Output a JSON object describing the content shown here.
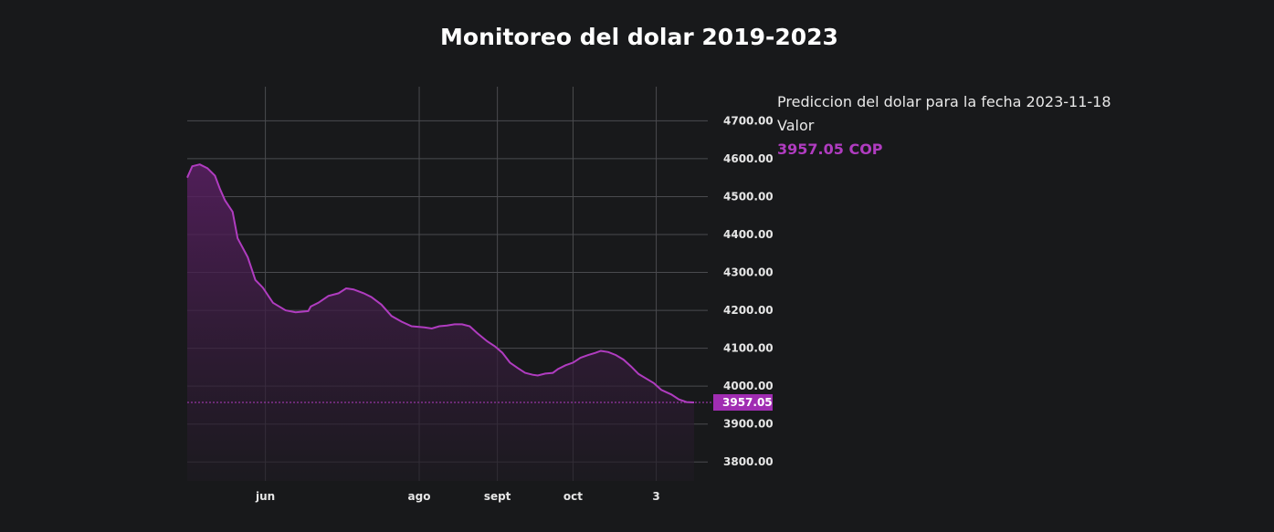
{
  "title": "Monitoreo del dolar 2019-2023",
  "info": {
    "prediction_text": "Prediccion del dolar para la fecha 2023-11-18",
    "value_label": "Valor",
    "value_text": "3957.05 COP"
  },
  "colors": {
    "accent": "#b03cc0",
    "background": "#18191b",
    "grid": "#4a4b4f"
  },
  "chart_data": {
    "type": "area",
    "title": "Monitoreo del dolar 2019-2023",
    "xlabel": "",
    "ylabel": "",
    "ylim": [
      3750,
      4790
    ],
    "y_ticks": [
      "3800.00",
      "3900.00",
      "4000.00",
      "4100.00",
      "4200.00",
      "4300.00",
      "4400.00",
      "4500.00",
      "4600.00",
      "4700.00"
    ],
    "x_ticks": [
      {
        "label": "jun",
        "date": "2023-06-01"
      },
      {
        "label": "ago",
        "date": "2023-08-01"
      },
      {
        "label": "sept",
        "date": "2023-09-01"
      },
      {
        "label": "oct",
        "date": "2023-10-01"
      },
      {
        "label": "3",
        "date": "2023-11-03"
      }
    ],
    "x_range": [
      "2023-05-01",
      "2023-11-18"
    ],
    "last_value_label": "3957.05",
    "grid": true,
    "series": [
      {
        "points": [
          [
            "2023-05-01",
            4550
          ],
          [
            "2023-05-03",
            4580
          ],
          [
            "2023-05-06",
            4585
          ],
          [
            "2023-05-09",
            4575
          ],
          [
            "2023-05-12",
            4555
          ],
          [
            "2023-05-14",
            4520
          ],
          [
            "2023-05-16",
            4490
          ],
          [
            "2023-05-19",
            4460
          ],
          [
            "2023-05-21",
            4390
          ],
          [
            "2023-05-25",
            4340
          ],
          [
            "2023-05-28",
            4280
          ],
          [
            "2023-05-31",
            4260
          ],
          [
            "2023-06-04",
            4220
          ],
          [
            "2023-06-09",
            4200
          ],
          [
            "2023-06-13",
            4195
          ],
          [
            "2023-06-18",
            4198
          ],
          [
            "2023-06-19",
            4210
          ],
          [
            "2023-06-22",
            4220
          ],
          [
            "2023-06-26",
            4238
          ],
          [
            "2023-06-30",
            4245
          ],
          [
            "2023-07-03",
            4258
          ],
          [
            "2023-07-06",
            4255
          ],
          [
            "2023-07-10",
            4245
          ],
          [
            "2023-07-13",
            4235
          ],
          [
            "2023-07-17",
            4215
          ],
          [
            "2023-07-21",
            4185
          ],
          [
            "2023-07-25",
            4170
          ],
          [
            "2023-07-29",
            4158
          ],
          [
            "2023-08-03",
            4155
          ],
          [
            "2023-08-06",
            4152
          ],
          [
            "2023-08-09",
            4158
          ],
          [
            "2023-08-12",
            4160
          ],
          [
            "2023-08-15",
            4163
          ],
          [
            "2023-08-18",
            4163
          ],
          [
            "2023-08-21",
            4158
          ],
          [
            "2023-08-24",
            4140
          ],
          [
            "2023-08-28",
            4118
          ],
          [
            "2023-08-31",
            4105
          ],
          [
            "2023-09-03",
            4088
          ],
          [
            "2023-09-06",
            4062
          ],
          [
            "2023-09-09",
            4048
          ],
          [
            "2023-09-12",
            4035
          ],
          [
            "2023-09-15",
            4030
          ],
          [
            "2023-09-17",
            4028
          ],
          [
            "2023-09-20",
            4033
          ],
          [
            "2023-09-23",
            4035
          ],
          [
            "2023-09-25",
            4045
          ],
          [
            "2023-09-28",
            4055
          ],
          [
            "2023-10-01",
            4062
          ],
          [
            "2023-10-04",
            4075
          ],
          [
            "2023-10-07",
            4082
          ],
          [
            "2023-10-10",
            4088
          ],
          [
            "2023-10-12",
            4093
          ],
          [
            "2023-10-15",
            4090
          ],
          [
            "2023-10-18",
            4082
          ],
          [
            "2023-10-21",
            4070
          ],
          [
            "2023-10-24",
            4052
          ],
          [
            "2023-10-27",
            4032
          ],
          [
            "2023-10-30",
            4020
          ],
          [
            "2023-11-02",
            4008
          ],
          [
            "2023-11-05",
            3990
          ],
          [
            "2023-11-09",
            3978
          ],
          [
            "2023-11-12",
            3965
          ],
          [
            "2023-11-15",
            3958
          ],
          [
            "2023-11-18",
            3957.05
          ]
        ]
      }
    ]
  }
}
